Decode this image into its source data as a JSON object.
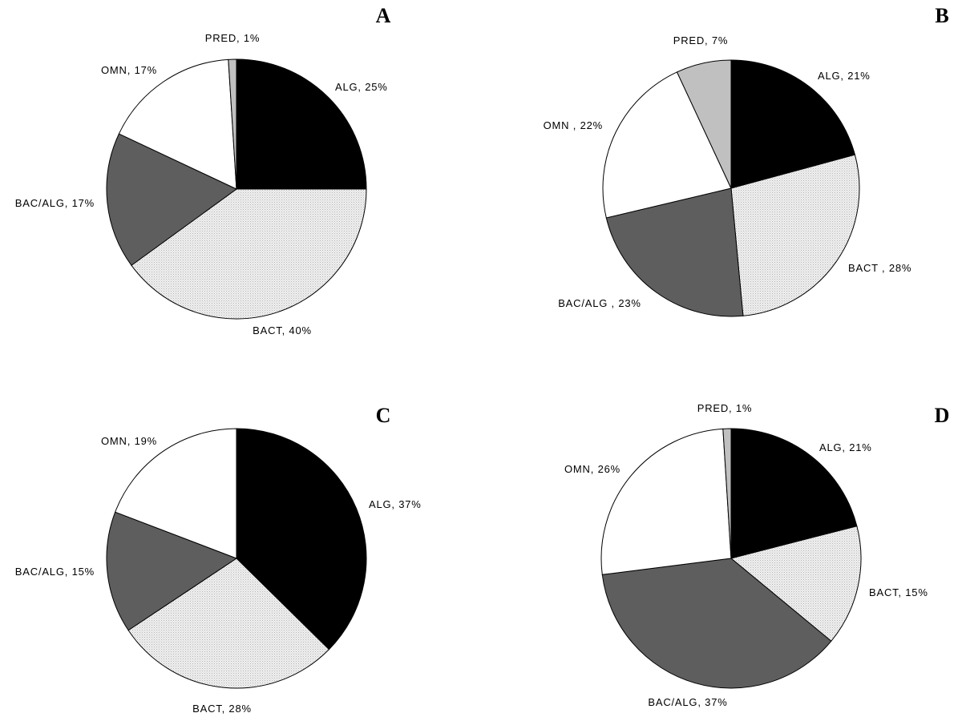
{
  "colors": {
    "ALG": "#000000",
    "BACT": "#ededed",
    "BAC/ALG": "#5e5e5e",
    "OMN": "#ffffff",
    "PRED": "#c0c0c0",
    "outline": "#000000"
  },
  "chart_data": [
    {
      "type": "pie",
      "title": "A",
      "slices": [
        {
          "category": "ALG",
          "value": 25,
          "label": "ALG, 25%"
        },
        {
          "category": "BACT",
          "value": 40,
          "label": "BACT, 40%"
        },
        {
          "category": "BAC/ALG",
          "value": 17,
          "label": "BAC/ALG, 17%"
        },
        {
          "category": "OMN",
          "value": 17,
          "label": "OMN, 17%"
        },
        {
          "category": "PRED",
          "value": 1,
          "label": "PRED, 1%"
        }
      ]
    },
    {
      "type": "pie",
      "title": "B",
      "slices": [
        {
          "category": "ALG",
          "value": 21,
          "label": "ALG, 21%"
        },
        {
          "category": "BACT",
          "value": 28,
          "label": "BACT , 28%"
        },
        {
          "category": "BAC/ALG",
          "value": 23,
          "label": "BAC/ALG , 23%"
        },
        {
          "category": "OMN",
          "value": 22,
          "label": "OMN , 22%"
        },
        {
          "category": "PRED",
          "value": 7,
          "label": "PRED, 7%"
        }
      ]
    },
    {
      "type": "pie",
      "title": "C",
      "slices": [
        {
          "category": "ALG",
          "value": 37,
          "label": "ALG, 37%"
        },
        {
          "category": "BACT",
          "value": 28,
          "label": "BACT, 28%"
        },
        {
          "category": "BAC/ALG",
          "value": 15,
          "label": "BAC/ALG, 15%"
        },
        {
          "category": "OMN",
          "value": 19,
          "label": "OMN, 19%"
        }
      ]
    },
    {
      "type": "pie",
      "title": "D",
      "slices": [
        {
          "category": "ALG",
          "value": 21,
          "label": "ALG, 21%"
        },
        {
          "category": "BACT",
          "value": 15,
          "label": "BACT, 15%"
        },
        {
          "category": "BAC/ALG",
          "value": 37,
          "label": "BAC/ALG, 37%"
        },
        {
          "category": "OMN",
          "value": 26,
          "label": "OMN, 26%"
        },
        {
          "category": "PRED",
          "value": 1,
          "label": "PRED, 1%"
        }
      ]
    }
  ]
}
